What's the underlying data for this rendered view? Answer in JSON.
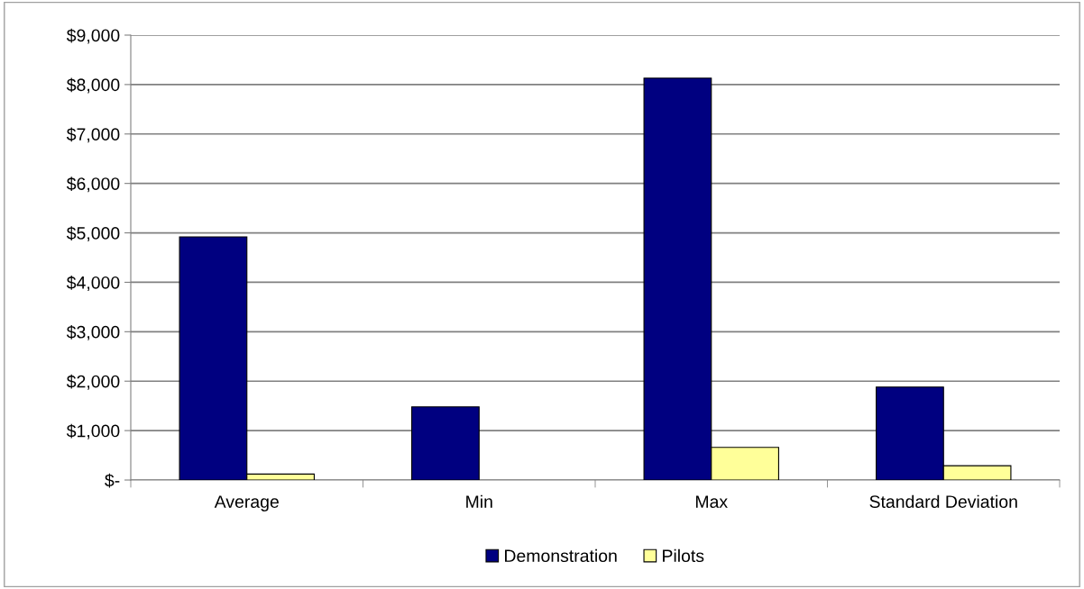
{
  "chart_data": {
    "type": "bar",
    "categories": [
      "Average",
      "Min",
      "Max",
      "Standard Deviation"
    ],
    "series": [
      {
        "name": "Demonstration",
        "color": "#000080",
        "values": [
          4920,
          1480,
          8130,
          1880
        ]
      },
      {
        "name": "Pilots",
        "color": "#ffff99",
        "values": [
          120,
          null,
          660,
          290
        ]
      }
    ],
    "ylim": [
      0,
      9000
    ],
    "yticks": [
      {
        "value": 0,
        "label": "$-"
      },
      {
        "value": 1000,
        "label": "$1,000"
      },
      {
        "value": 2000,
        "label": "$2,000"
      },
      {
        "value": 3000,
        "label": "$3,000"
      },
      {
        "value": 4000,
        "label": "$4,000"
      },
      {
        "value": 5000,
        "label": "$5,000"
      },
      {
        "value": 6000,
        "label": "$6,000"
      },
      {
        "value": 7000,
        "label": "$7,000"
      },
      {
        "value": 8000,
        "label": "$8,000"
      },
      {
        "value": 9000,
        "label": "$9,000"
      }
    ],
    "grid": "y",
    "legend": "bottom"
  }
}
